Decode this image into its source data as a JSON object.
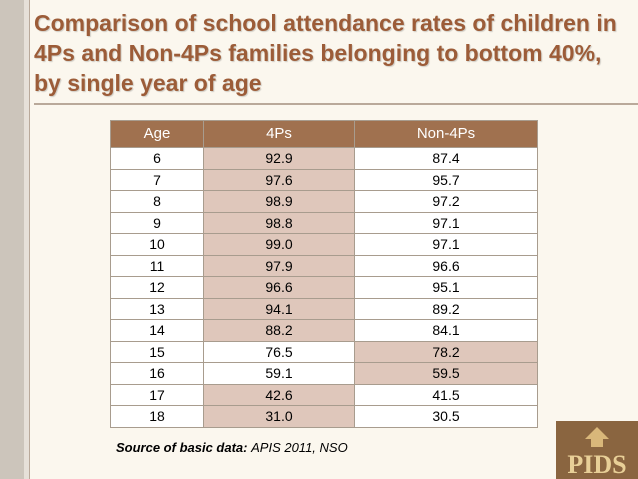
{
  "title": "Comparison of school attendance rates of children in 4Ps and Non-4Ps families belonging to bottom 40%, by single year of age",
  "table": {
    "headers": [
      "Age",
      "4Ps",
      "Non-4Ps"
    ],
    "rows": [
      {
        "age": "6",
        "fourps": "92.9",
        "non4ps": "87.4",
        "highlight": "fourps"
      },
      {
        "age": "7",
        "fourps": "97.6",
        "non4ps": "95.7",
        "highlight": "fourps"
      },
      {
        "age": "8",
        "fourps": "98.9",
        "non4ps": "97.2",
        "highlight": "fourps"
      },
      {
        "age": "9",
        "fourps": "98.8",
        "non4ps": "97.1",
        "highlight": "fourps"
      },
      {
        "age": "10",
        "fourps": "99.0",
        "non4ps": "97.1",
        "highlight": "fourps"
      },
      {
        "age": "11",
        "fourps": "97.9",
        "non4ps": "96.6",
        "highlight": "fourps"
      },
      {
        "age": "12",
        "fourps": "96.6",
        "non4ps": "95.1",
        "highlight": "fourps"
      },
      {
        "age": "13",
        "fourps": "94.1",
        "non4ps": "89.2",
        "highlight": "fourps"
      },
      {
        "age": "14",
        "fourps": "88.2",
        "non4ps": "84.1",
        "highlight": "fourps"
      },
      {
        "age": "15",
        "fourps": "76.5",
        "non4ps": "78.2",
        "highlight": "non4ps"
      },
      {
        "age": "16",
        "fourps": "59.1",
        "non4ps": "59.5",
        "highlight": "non4ps"
      },
      {
        "age": "17",
        "fourps": "42.6",
        "non4ps": "41.5",
        "highlight": "fourps"
      },
      {
        "age": "18",
        "fourps": "31.0",
        "non4ps": "30.5",
        "highlight": "fourps"
      }
    ]
  },
  "source": {
    "label": "Source of basic data:",
    "value": "APIS 2011, NSO"
  },
  "logo": {
    "name": "pids-logo",
    "text": "PIDS"
  },
  "colors": {
    "title": "#9c5c38",
    "header_bg": "#a0714f",
    "highlight": "#dfc7bb",
    "background": "#fbf7ee"
  }
}
